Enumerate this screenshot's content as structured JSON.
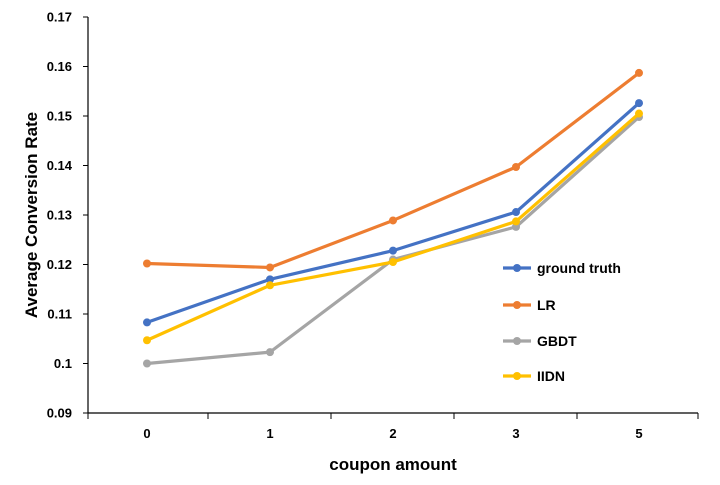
{
  "chart_data": {
    "type": "line",
    "title": "",
    "xlabel": "coupon amount",
    "ylabel": "Average Conversion Rate",
    "categories": [
      "0",
      "1",
      "2",
      "3",
      "5"
    ],
    "ylim": [
      0.09,
      0.17
    ],
    "yticks": [
      "0.09",
      "0.1",
      "0.11",
      "0.12",
      "0.13",
      "0.14",
      "0.15",
      "0.16",
      "0.17"
    ],
    "grid": false,
    "legend_position": "right",
    "series": [
      {
        "name": "ground truth",
        "color": "#4472C4",
        "values": [
          0.1083,
          0.117,
          0.1228,
          0.1306,
          0.1526
        ]
      },
      {
        "name": "LR",
        "color": "#ED7D31",
        "values": [
          0.1202,
          0.1194,
          0.1289,
          0.1397,
          0.1587
        ]
      },
      {
        "name": "GBDT",
        "color": "#A5A5A5",
        "values": [
          0.1,
          0.1023,
          0.121,
          0.1276,
          0.1498
        ]
      },
      {
        "name": "IIDN",
        "color": "#FFC000",
        "values": [
          0.1047,
          0.1158,
          0.1205,
          0.1287,
          0.1505
        ]
      }
    ]
  }
}
